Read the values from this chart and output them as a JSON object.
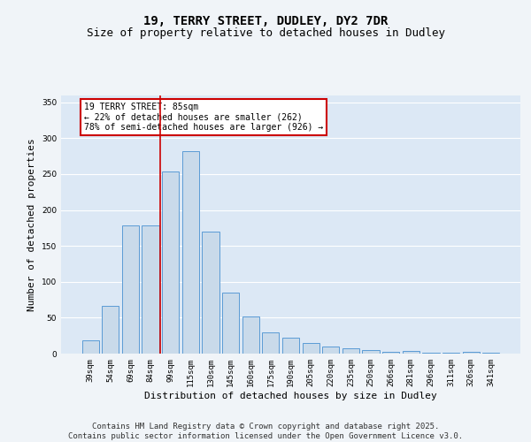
{
  "title1": "19, TERRY STREET, DUDLEY, DY2 7DR",
  "title2": "Size of property relative to detached houses in Dudley",
  "xlabel": "Distribution of detached houses by size in Dudley",
  "ylabel": "Number of detached properties",
  "categories": [
    "39sqm",
    "54sqm",
    "69sqm",
    "84sqm",
    "99sqm",
    "115sqm",
    "130sqm",
    "145sqm",
    "160sqm",
    "175sqm",
    "190sqm",
    "205sqm",
    "220sqm",
    "235sqm",
    "250sqm",
    "266sqm",
    "281sqm",
    "296sqm",
    "311sqm",
    "326sqm",
    "341sqm"
  ],
  "values": [
    18,
    67,
    178,
    178,
    253,
    282,
    170,
    85,
    52,
    30,
    22,
    15,
    10,
    8,
    5,
    3,
    4,
    1,
    1,
    2,
    1
  ],
  "bar_color": "#c9daea",
  "bar_edge_color": "#5b9bd5",
  "bg_color": "#dce8f5",
  "grid_color": "#ffffff",
  "annotation_text": "19 TERRY STREET: 85sqm\n← 22% of detached houses are smaller (262)\n78% of semi-detached houses are larger (926) →",
  "annotation_box_color": "#ffffff",
  "annotation_box_edge": "#cc0000",
  "vline_color": "#cc0000",
  "ylim": [
    0,
    360
  ],
  "yticks": [
    0,
    50,
    100,
    150,
    200,
    250,
    300,
    350
  ],
  "footer": "Contains HM Land Registry data © Crown copyright and database right 2025.\nContains public sector information licensed under the Open Government Licence v3.0.",
  "title_fontsize": 10,
  "subtitle_fontsize": 9,
  "axis_label_fontsize": 8,
  "tick_fontsize": 6.5,
  "footer_fontsize": 6.5
}
